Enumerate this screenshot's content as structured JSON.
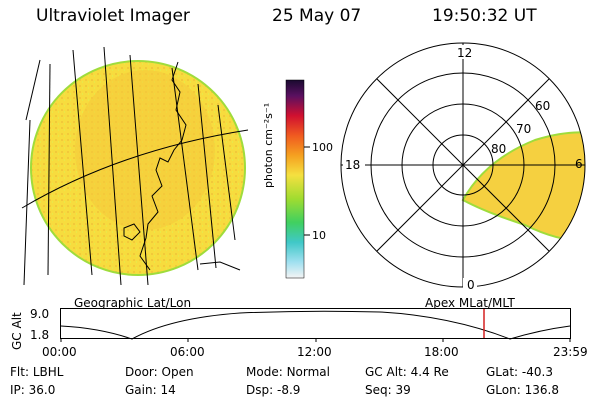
{
  "header": {
    "title": "Ultraviolet Imager",
    "date": "25 May 07",
    "time": "19:50:32 UT"
  },
  "colorbar": {
    "units_label": "photon cm⁻²s⁻¹",
    "tick_labels": [
      "100",
      "10"
    ]
  },
  "polar_plot": {
    "mlt_labels": {
      "top": "12",
      "left": "18",
      "right": "6",
      "bottom": "0"
    },
    "lat_labels": [
      "60",
      "70",
      "80"
    ]
  },
  "map_labels": {
    "left": "Geographic Lat/Lon",
    "right": "Apex MLat/MLT"
  },
  "altitude_panel": {
    "axis_label": "GC Alt",
    "y_ticks": [
      "9.0",
      "1.8"
    ],
    "x_ticks": [
      "00:00",
      "06:00",
      "12:00",
      "18:00",
      "23:59"
    ]
  },
  "status": {
    "row1": [
      {
        "label": "Flt:",
        "value": "LBHL"
      },
      {
        "label": "Door:",
        "value": "Open"
      },
      {
        "label": "Mode:",
        "value": "Normal"
      },
      {
        "label": "GC Alt:",
        "value": "4.4 Re"
      },
      {
        "label": "GLat:",
        "value": "-40.3"
      }
    ],
    "row2": [
      {
        "label": "IP:",
        "value": "36.0"
      },
      {
        "label": "Gain:",
        "value": "14"
      },
      {
        "label": "Dsp:",
        "value": "-8.9"
      },
      {
        "label": "Seq:",
        "value": "39"
      },
      {
        "label": "GLon:",
        "value": "136.8"
      }
    ]
  },
  "colors": {
    "disk_fill": "#f5e04a",
    "disk_edge": "#9fdc3c",
    "marker_line": "#d42020"
  }
}
